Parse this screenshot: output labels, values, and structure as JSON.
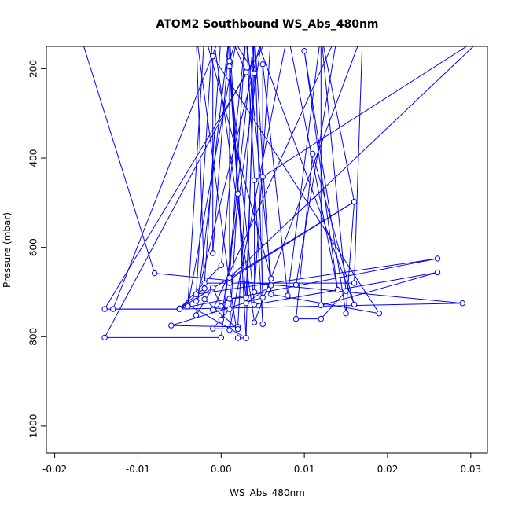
{
  "chart_data": {
    "type": "line",
    "title": "ATOM2 Southbound WS_Abs_480nm",
    "xlabel": "WS_Abs_480nm",
    "ylabel": "Pressure (mbar)",
    "xlim": [
      -0.021,
      0.032
    ],
    "ylim": [
      1060,
      150
    ],
    "y_reversed": true,
    "x_ticks": [
      {
        "value": -0.02,
        "label": "-0.02"
      },
      {
        "value": -0.01,
        "label": "-0.01"
      },
      {
        "value": 0.0,
        "label": "0.00"
      },
      {
        "value": 0.01,
        "label": "0.01"
      },
      {
        "value": 0.02,
        "label": "0.02"
      },
      {
        "value": 0.03,
        "label": "0.03"
      }
    ],
    "y_ticks": [
      {
        "value": 200,
        "label": "200"
      },
      {
        "value": 400,
        "label": "400"
      },
      {
        "value": 600,
        "label": "600"
      },
      {
        "value": 800,
        "label": "800"
      },
      {
        "value": 1000,
        "label": "1000"
      }
    ],
    "grid": false,
    "series_color": "#0000ff",
    "series": [
      {
        "points": [
          [
            -0.017,
            120
          ],
          [
            -0.008,
            658
          ],
          [
            0.029,
            725
          ],
          [
            -0.005,
            738
          ],
          [
            -0.013,
            738
          ],
          [
            0.0,
            120
          ],
          [
            -0.002,
            680
          ],
          [
            0.016,
            680
          ],
          [
            0.017,
            120
          ],
          [
            0.004,
            768
          ],
          [
            -0.001,
            120
          ],
          [
            -0.003,
            705
          ],
          [
            0.026,
            625
          ],
          [
            -0.005,
            737
          ],
          [
            0.0,
            640
          ],
          [
            0.003,
            120
          ],
          [
            0.005,
            772
          ],
          [
            0.005,
            190
          ],
          [
            0.008,
            708
          ],
          [
            0.012,
            120
          ],
          [
            0.012,
            730
          ],
          [
            0.026,
            656
          ],
          [
            0.004,
            728
          ],
          [
            0.001,
            195
          ],
          [
            0.002,
            480
          ],
          [
            0.001,
            785
          ],
          [
            0.008,
            120
          ],
          [
            0.014,
            695
          ],
          [
            0.01,
            160
          ],
          [
            0.015,
            748
          ],
          [
            0.016,
            498
          ],
          [
            0.001,
            672
          ],
          [
            0.003,
            120
          ],
          [
            0.006,
            670
          ],
          [
            -0.002,
            120
          ],
          [
            -0.004,
            728
          ],
          [
            0.003,
            803
          ],
          [
            0.004,
            120
          ],
          [
            0.006,
            705
          ],
          [
            0.019,
            748
          ],
          [
            -0.001,
            172
          ],
          [
            -0.001,
            613
          ],
          [
            0.001,
            120
          ],
          [
            0.003,
            208
          ],
          [
            -0.014,
            802
          ],
          [
            0.0,
            802
          ],
          [
            0.004,
            120
          ],
          [
            0.002,
            778
          ],
          [
            -0.006,
            775
          ],
          [
            0.005,
            712
          ],
          [
            0.004,
            120
          ],
          [
            0.016,
            728
          ],
          [
            0.011,
            390
          ],
          [
            0.009,
            760
          ],
          [
            0.012,
            760
          ],
          [
            0.015,
            698
          ],
          [
            0.012,
            120
          ],
          [
            0.016,
            498
          ],
          [
            -0.005,
            737
          ],
          [
            -0.002,
            692
          ],
          [
            -0.003,
            120
          ],
          [
            0.001,
            680
          ],
          [
            0.002,
            803
          ],
          [
            0.003,
            803
          ],
          [
            0.001,
            120
          ],
          [
            0.001,
            668
          ],
          [
            0.032,
            120
          ],
          [
            0.005,
            442
          ],
          [
            0.004,
            450
          ],
          [
            0.004,
            700
          ],
          [
            0.006,
            120
          ],
          [
            -0.014,
            738
          ],
          [
            -0.005,
            738
          ],
          [
            -0.004,
            732
          ],
          [
            0.002,
            120
          ],
          [
            0.001,
            183
          ],
          [
            0.003,
            725
          ],
          [
            0.006,
            685
          ],
          [
            0.009,
            684
          ],
          [
            0.014,
            120
          ],
          [
            -0.001,
            740
          ],
          [
            0.001,
            715
          ],
          [
            0.003,
            712
          ],
          [
            0.004,
            210
          ],
          [
            0.001,
            120
          ],
          [
            -0.003,
            752
          ],
          [
            -0.001,
            690
          ],
          [
            0.0,
            732
          ],
          [
            0.001,
            738
          ],
          [
            -0.001,
            782
          ],
          [
            0.002,
            783
          ],
          [
            -0.002,
            716
          ],
          [
            -0.003,
            720
          ],
          [
            0.005,
            120
          ],
          [
            0.0,
            762
          ]
        ]
      }
    ]
  }
}
